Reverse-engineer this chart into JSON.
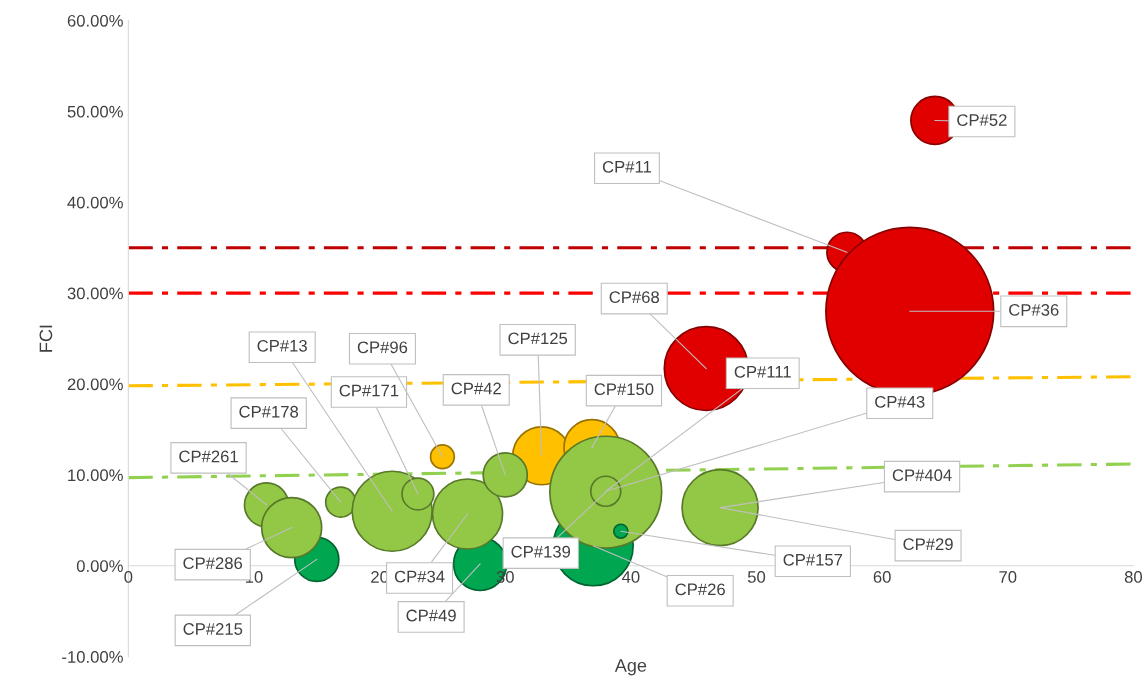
{
  "chart_data": {
    "type": "bubble",
    "xlabel": "Age",
    "ylabel": "FCI",
    "xlim": [
      0,
      80
    ],
    "xticks": [
      0,
      10,
      20,
      30,
      40,
      50,
      60,
      70,
      80
    ],
    "ylim": [
      -10,
      60
    ],
    "yticks": [
      {
        "value": -10,
        "label": "-10.00%"
      },
      {
        "value": 0,
        "label": "0.00%"
      },
      {
        "value": 10,
        "label": "10.00%"
      },
      {
        "value": 20,
        "label": "20.00%"
      },
      {
        "value": 30,
        "label": "30.00%"
      },
      {
        "value": 40,
        "label": "40.00%"
      },
      {
        "value": 50,
        "label": "50.00%"
      },
      {
        "value": 60,
        "label": "60.00%"
      }
    ],
    "grid": false,
    "series": [
      {
        "type": "line",
        "color": "#92d050",
        "line_style": "dashdot",
        "x": [
          0,
          80
        ],
        "values": [
          9.7,
          11.2
        ]
      },
      {
        "type": "line",
        "color": "#ffc000",
        "line_style": "dashdot",
        "x": [
          0,
          80
        ],
        "values": [
          19.8,
          20.8
        ]
      },
      {
        "color": "#ffc000",
        "x": [
          25.0,
          32.9,
          36.9
        ],
        "values": [
          12.0,
          12.1,
          13.0
        ],
        "sizes": [
          0.02,
          0.119,
          0.111
        ]
      },
      {
        "color": "#00a650",
        "x": [
          15.0,
          28.0,
          37.0
        ],
        "values": [
          0.7,
          0.2,
          2.2
        ],
        "sizes": [
          0.069,
          0.1,
          0.227
        ]
      },
      {
        "color": "#92c846",
        "x": [
          11.0,
          13.0,
          16.9,
          21.0,
          23.05,
          27.0,
          30.0,
          38.0,
          38.0,
          47.1
        ],
        "values": [
          6.7,
          4.2,
          7.0,
          6.0,
          7.9,
          5.7,
          10.0,
          8.1,
          8.2,
          6.4
        ],
        "sizes": [
          0.069,
          0.128,
          0.032,
          0.227,
          0.036,
          0.174,
          0.069,
          0.444,
          0.032,
          0.205
        ]
      },
      {
        "color": "#00a650",
        "x": [
          39.2
        ],
        "values": [
          3.8
        ],
        "sizes": [
          0.007
        ]
      },
      {
        "color": "#e00000",
        "x": [
          46.0,
          57.2,
          62.2,
          64.2
        ],
        "values": [
          21.7,
          34.5,
          28.0,
          49.0
        ],
        "sizes": [
          0.25,
          0.057,
          1,
          0.082
        ]
      }
    ],
    "ref_lines": [
      {
        "axis": "y",
        "value": 35,
        "color": "#c00000",
        "line_style": "dashdot"
      },
      {
        "axis": "y",
        "value": 30,
        "color": "#ff0000",
        "line_style": "dashdot"
      }
    ],
    "annotations": [
      {
        "text": "CP#215",
        "x": 15.0,
        "y": 0.7
      },
      {
        "text": "CP#49",
        "x": 28.0,
        "y": 0.2
      },
      {
        "text": "CP#26",
        "x": 37.0,
        "y": 2.2
      },
      {
        "text": "CP#157",
        "x": 39.2,
        "y": 3.8
      },
      {
        "text": "CP#261",
        "x": 11.0,
        "y": 6.7
      },
      {
        "text": "CP#286",
        "x": 13.0,
        "y": 4.2
      },
      {
        "text": "CP#178",
        "x": 16.9,
        "y": 7.0
      },
      {
        "text": "CP#13",
        "x": 21.0,
        "y": 6.0
      },
      {
        "text": "CP#171",
        "x": 23.05,
        "y": 7.9
      },
      {
        "text": "CP#34",
        "x": 27.0,
        "y": 5.7
      },
      {
        "text": "CP#42",
        "x": 30.0,
        "y": 10.0
      },
      {
        "text": "CP#139",
        "x": 38.0,
        "y": 8.1
      },
      {
        "text": "CP#111",
        "x": 38.0,
        "y": 8.2
      },
      {
        "text": "CP#43",
        "x": 38.0,
        "y": 8.2
      },
      {
        "text": "CP#404",
        "x": 47.1,
        "y": 6.4
      },
      {
        "text": "CP#29",
        "x": 47.1,
        "y": 6.4
      },
      {
        "text": "CP#96",
        "x": 25.0,
        "y": 12.0
      },
      {
        "text": "CP#125",
        "x": 32.9,
        "y": 12.1
      },
      {
        "text": "CP#150",
        "x": 36.9,
        "y": 13.0
      },
      {
        "text": "CP#68",
        "x": 46.0,
        "y": 21.7
      },
      {
        "text": "CP#11",
        "x": 57.2,
        "y": 34.5
      },
      {
        "text": "CP#36",
        "x": 62.2,
        "y": 28.0
      },
      {
        "text": "CP#52",
        "x": 64.2,
        "y": 49.0
      }
    ]
  }
}
